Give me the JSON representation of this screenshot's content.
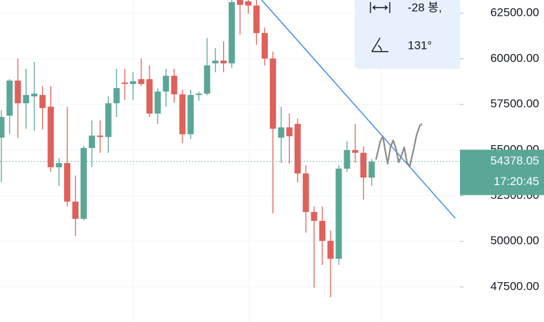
{
  "chart_data": {
    "type": "candlestick",
    "up_color": "#5aa697",
    "down_color": "#e0605a",
    "ylim": [
      45580,
      63220
    ],
    "yticks": [
      {
        "value": 47500,
        "label": "47500.00"
      },
      {
        "value": 50000,
        "label": "50000.00"
      },
      {
        "value": 52500,
        "label": "52500.00"
      },
      {
        "value": 55000,
        "label": "55000.00"
      },
      {
        "value": 57500,
        "label": "57500.00"
      },
      {
        "value": 60000,
        "label": "60000.00"
      },
      {
        "value": 62500,
        "label": "62500.00"
      }
    ],
    "grid": true,
    "open": [
      55678,
      56884,
      58806,
      57563,
      57940,
      58015,
      57374,
      54057,
      54284,
      52173,
      51231,
      55113,
      55791,
      55716,
      57563,
      58694,
      58618,
      58882,
      58882,
      56997,
      58203,
      59070,
      58053,
      55867,
      58015,
      58090,
      59749,
      59900,
      59749,
      63300,
      63150,
      62915,
      61407,
      60012,
      55678,
      56243,
      56432,
      53718,
      51608,
      51118,
      50024,
      49044,
      53982,
      55000,
      54849,
      53492
    ],
    "high": [
      57186,
      58882,
      60012,
      59447,
      59824,
      58505,
      58505,
      54547,
      57374,
      53605,
      55226,
      56620,
      56620,
      57940,
      59447,
      59447,
      59259,
      60012,
      59636,
      58392,
      59447,
      59447,
      58316,
      58316,
      58200,
      61143,
      60578,
      60955,
      63600,
      63600,
      63400,
      63300,
      61708,
      60389,
      57374,
      57000,
      56733,
      54171,
      51909,
      51909,
      50590,
      54171,
      55490,
      56432,
      55200,
      54500
    ],
    "low": [
      53228,
      55867,
      55678,
      56168,
      56055,
      56130,
      53794,
      53040,
      51909,
      50288,
      51155,
      54057,
      54849,
      54849,
      56809,
      57751,
      57751,
      58505,
      56809,
      56432,
      57374,
      57600,
      55377,
      55600,
      57700,
      58000,
      59259,
      59259,
      59500,
      61331,
      62462,
      60766,
      59636,
      51532,
      54284,
      54250,
      53228,
      50476,
      47462,
      48705,
      46934,
      48705,
      53794,
      54300,
      52286,
      53040
    ],
    "close": [
      56809,
      58806,
      57563,
      58015,
      58090,
      57299,
      54057,
      54284,
      52173,
      51231,
      55113,
      55791,
      55716,
      57563,
      58392,
      58618,
      58769,
      58618,
      56997,
      58203,
      59070,
      58053,
      55867,
      58015,
      58090,
      59636,
      59900,
      59749,
      63100,
      62952,
      62915,
      61407,
      60012,
      56168,
      56243,
      55754,
      53718,
      51608,
      51118,
      50024,
      49044,
      53982,
      55000,
      54849,
      53492,
      54360
    ],
    "last_price": 54378.05,
    "last_time": "17:20:45",
    "annotations": {
      "bars": "-28 봉,",
      "angle": "131°"
    }
  }
}
